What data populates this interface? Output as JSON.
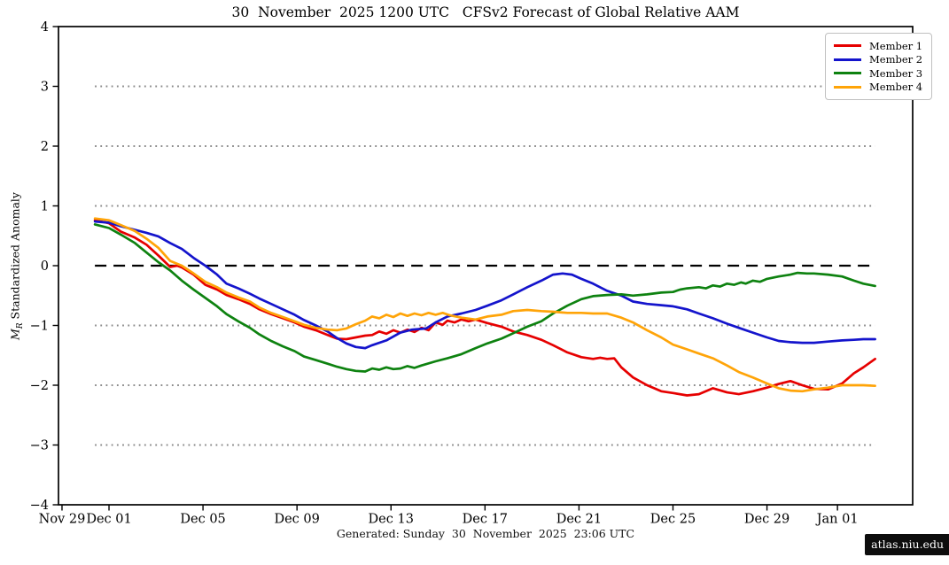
{
  "title": "30  November  2025 1200 UTC   CFSv2 Forecast of Global Relative AAM",
  "caption": "Generated: Sunday  30  November  2025  23:06 UTC",
  "watermark": "atlas.niu.edu",
  "ylabel": {
    "m": "M",
    "sub": "R",
    "rest": " Standardized Anomaly"
  },
  "chart_data": {
    "type": "line",
    "title": "30  November  2025 1200 UTC   CFSv2 Forecast of Global Relative AAM",
    "xlabel": "",
    "ylabel": "M_R Standardized Anomaly",
    "ylim": [
      -4,
      4
    ],
    "yticks": [
      -4,
      -3,
      -2,
      -1,
      0,
      1,
      2,
      3,
      4
    ],
    "xlim_days": [
      -0.15,
      36.2
    ],
    "x_unit": "days after Nov 29",
    "xticks": [
      {
        "day": 0,
        "label": "Nov 29"
      },
      {
        "day": 2,
        "label": "Dec 01"
      },
      {
        "day": 6,
        "label": "Dec 05"
      },
      {
        "day": 10,
        "label": "Dec 09"
      },
      {
        "day": 14,
        "label": "Dec 13"
      },
      {
        "day": 18,
        "label": "Dec 17"
      },
      {
        "day": 22,
        "label": "Dec 21"
      },
      {
        "day": 26,
        "label": "Dec 25"
      },
      {
        "day": 30,
        "label": "Dec 29"
      },
      {
        "day": 33,
        "label": "Jan 01"
      }
    ],
    "grid": {
      "dotted_levels": [
        -3,
        -2,
        -1,
        1,
        2,
        3
      ],
      "dotted_color": "#8a8a8a",
      "zero_line_level": 0,
      "zero_line_color": "#000000",
      "span_days": [
        1.4,
        34.6
      ]
    },
    "legend_position": "upper right",
    "series": [
      {
        "name": "Member 1",
        "color": "#e60000",
        "points": [
          [
            1.4,
            0.76
          ],
          [
            2.0,
            0.71
          ],
          [
            2.5,
            0.57
          ],
          [
            3.1,
            0.47
          ],
          [
            3.6,
            0.35
          ],
          [
            4.1,
            0.17
          ],
          [
            4.6,
            -0.02
          ],
          [
            4.9,
            0.0
          ],
          [
            5.1,
            -0.03
          ],
          [
            5.6,
            -0.15
          ],
          [
            6.1,
            -0.32
          ],
          [
            6.6,
            -0.4
          ],
          [
            7.0,
            -0.49
          ],
          [
            7.5,
            -0.56
          ],
          [
            8.0,
            -0.64
          ],
          [
            8.4,
            -0.73
          ],
          [
            8.9,
            -0.81
          ],
          [
            9.4,
            -0.88
          ],
          [
            9.9,
            -0.95
          ],
          [
            10.3,
            -1.02
          ],
          [
            10.8,
            -1.08
          ],
          [
            11.3,
            -1.16
          ],
          [
            11.7,
            -1.22
          ],
          [
            12.1,
            -1.23
          ],
          [
            12.5,
            -1.2
          ],
          [
            12.9,
            -1.17
          ],
          [
            13.2,
            -1.16
          ],
          [
            13.5,
            -1.1
          ],
          [
            13.8,
            -1.14
          ],
          [
            14.1,
            -1.08
          ],
          [
            14.4,
            -1.12
          ],
          [
            14.7,
            -1.07
          ],
          [
            15.0,
            -1.11
          ],
          [
            15.3,
            -1.04
          ],
          [
            15.6,
            -1.08
          ],
          [
            15.9,
            -0.95
          ],
          [
            16.2,
            -0.99
          ],
          [
            16.4,
            -0.92
          ],
          [
            16.7,
            -0.95
          ],
          [
            17.0,
            -0.9
          ],
          [
            17.3,
            -0.93
          ],
          [
            17.6,
            -0.9
          ],
          [
            18.1,
            -0.96
          ],
          [
            18.7,
            -1.02
          ],
          [
            19.2,
            -1.1
          ],
          [
            19.8,
            -1.16
          ],
          [
            20.4,
            -1.24
          ],
          [
            20.9,
            -1.33
          ],
          [
            21.5,
            -1.45
          ],
          [
            22.1,
            -1.53
          ],
          [
            22.6,
            -1.56
          ],
          [
            22.9,
            -1.54
          ],
          [
            23.2,
            -1.56
          ],
          [
            23.5,
            -1.55
          ],
          [
            23.8,
            -1.7
          ],
          [
            24.3,
            -1.87
          ],
          [
            24.9,
            -2.0
          ],
          [
            25.5,
            -2.1
          ],
          [
            26.0,
            -2.13
          ],
          [
            26.6,
            -2.17
          ],
          [
            27.1,
            -2.15
          ],
          [
            27.7,
            -2.05
          ],
          [
            28.3,
            -2.12
          ],
          [
            28.8,
            -2.15
          ],
          [
            29.4,
            -2.1
          ],
          [
            30.0,
            -2.04
          ],
          [
            30.5,
            -1.98
          ],
          [
            31.0,
            -1.93
          ],
          [
            31.5,
            -2.0
          ],
          [
            32.0,
            -2.06
          ],
          [
            32.6,
            -2.07
          ],
          [
            33.2,
            -1.97
          ],
          [
            33.7,
            -1.8
          ],
          [
            34.1,
            -1.7
          ],
          [
            34.6,
            -1.56
          ]
        ]
      },
      {
        "name": "Member 2",
        "color": "#1414cc",
        "points": [
          [
            1.4,
            0.74
          ],
          [
            2.0,
            0.72
          ],
          [
            2.5,
            0.66
          ],
          [
            3.1,
            0.6
          ],
          [
            3.6,
            0.55
          ],
          [
            4.1,
            0.49
          ],
          [
            4.6,
            0.38
          ],
          [
            5.1,
            0.28
          ],
          [
            5.6,
            0.13
          ],
          [
            6.1,
            0.0
          ],
          [
            6.6,
            -0.15
          ],
          [
            7.0,
            -0.3
          ],
          [
            7.5,
            -0.38
          ],
          [
            8.0,
            -0.47
          ],
          [
            8.4,
            -0.55
          ],
          [
            8.9,
            -0.64
          ],
          [
            9.4,
            -0.73
          ],
          [
            9.9,
            -0.82
          ],
          [
            10.3,
            -0.91
          ],
          [
            10.8,
            -1.0
          ],
          [
            11.3,
            -1.1
          ],
          [
            11.7,
            -1.21
          ],
          [
            12.1,
            -1.3
          ],
          [
            12.5,
            -1.36
          ],
          [
            12.9,
            -1.38
          ],
          [
            13.2,
            -1.33
          ],
          [
            13.8,
            -1.25
          ],
          [
            14.4,
            -1.12
          ],
          [
            14.9,
            -1.07
          ],
          [
            15.5,
            -1.05
          ],
          [
            15.9,
            -0.95
          ],
          [
            16.4,
            -0.85
          ],
          [
            17.0,
            -0.8
          ],
          [
            17.6,
            -0.74
          ],
          [
            18.1,
            -0.67
          ],
          [
            18.7,
            -0.58
          ],
          [
            19.2,
            -0.48
          ],
          [
            19.8,
            -0.36
          ],
          [
            20.4,
            -0.25
          ],
          [
            20.9,
            -0.15
          ],
          [
            21.3,
            -0.13
          ],
          [
            21.7,
            -0.15
          ],
          [
            22.1,
            -0.22
          ],
          [
            22.6,
            -0.3
          ],
          [
            23.2,
            -0.42
          ],
          [
            23.8,
            -0.5
          ],
          [
            24.3,
            -0.6
          ],
          [
            24.9,
            -0.64
          ],
          [
            25.5,
            -0.66
          ],
          [
            26.0,
            -0.68
          ],
          [
            26.6,
            -0.73
          ],
          [
            27.1,
            -0.8
          ],
          [
            27.7,
            -0.88
          ],
          [
            28.3,
            -0.97
          ],
          [
            28.8,
            -1.04
          ],
          [
            29.4,
            -1.12
          ],
          [
            30.0,
            -1.2
          ],
          [
            30.5,
            -1.26
          ],
          [
            31.0,
            -1.28
          ],
          [
            31.5,
            -1.29
          ],
          [
            32.0,
            -1.29
          ],
          [
            32.6,
            -1.27
          ],
          [
            33.2,
            -1.25
          ],
          [
            33.7,
            -1.24
          ],
          [
            34.1,
            -1.23
          ],
          [
            34.6,
            -1.23
          ]
        ]
      },
      {
        "name": "Member 3",
        "color": "#0e8210",
        "points": [
          [
            1.4,
            0.69
          ],
          [
            2.0,
            0.63
          ],
          [
            2.5,
            0.52
          ],
          [
            3.1,
            0.38
          ],
          [
            3.6,
            0.22
          ],
          [
            4.1,
            0.06
          ],
          [
            4.6,
            -0.08
          ],
          [
            5.1,
            -0.25
          ],
          [
            5.6,
            -0.4
          ],
          [
            6.1,
            -0.54
          ],
          [
            6.6,
            -0.68
          ],
          [
            7.0,
            -0.81
          ],
          [
            7.5,
            -0.93
          ],
          [
            8.0,
            -1.04
          ],
          [
            8.4,
            -1.15
          ],
          [
            8.9,
            -1.26
          ],
          [
            9.4,
            -1.35
          ],
          [
            9.9,
            -1.43
          ],
          [
            10.3,
            -1.52
          ],
          [
            10.8,
            -1.58
          ],
          [
            11.3,
            -1.64
          ],
          [
            11.7,
            -1.69
          ],
          [
            12.1,
            -1.73
          ],
          [
            12.5,
            -1.76
          ],
          [
            12.9,
            -1.77
          ],
          [
            13.2,
            -1.72
          ],
          [
            13.5,
            -1.74
          ],
          [
            13.8,
            -1.7
          ],
          [
            14.1,
            -1.73
          ],
          [
            14.4,
            -1.72
          ],
          [
            14.7,
            -1.68
          ],
          [
            15.0,
            -1.71
          ],
          [
            15.3,
            -1.67
          ],
          [
            15.9,
            -1.6
          ],
          [
            16.4,
            -1.55
          ],
          [
            17.0,
            -1.48
          ],
          [
            17.6,
            -1.38
          ],
          [
            18.1,
            -1.3
          ],
          [
            18.7,
            -1.22
          ],
          [
            19.2,
            -1.13
          ],
          [
            19.8,
            -1.02
          ],
          [
            20.4,
            -0.93
          ],
          [
            20.9,
            -0.8
          ],
          [
            21.5,
            -0.67
          ],
          [
            22.1,
            -0.56
          ],
          [
            22.6,
            -0.51
          ],
          [
            23.2,
            -0.49
          ],
          [
            23.8,
            -0.48
          ],
          [
            24.3,
            -0.5
          ],
          [
            24.9,
            -0.48
          ],
          [
            25.5,
            -0.45
          ],
          [
            26.0,
            -0.44
          ],
          [
            26.3,
            -0.4
          ],
          [
            26.6,
            -0.38
          ],
          [
            27.1,
            -0.36
          ],
          [
            27.4,
            -0.38
          ],
          [
            27.7,
            -0.33
          ],
          [
            28.0,
            -0.35
          ],
          [
            28.3,
            -0.3
          ],
          [
            28.6,
            -0.32
          ],
          [
            28.9,
            -0.28
          ],
          [
            29.1,
            -0.3
          ],
          [
            29.4,
            -0.25
          ],
          [
            29.7,
            -0.27
          ],
          [
            30.0,
            -0.22
          ],
          [
            30.5,
            -0.18
          ],
          [
            31.0,
            -0.15
          ],
          [
            31.3,
            -0.12
          ],
          [
            31.7,
            -0.13
          ],
          [
            32.0,
            -0.13
          ],
          [
            32.6,
            -0.15
          ],
          [
            33.2,
            -0.18
          ],
          [
            33.7,
            -0.25
          ],
          [
            34.1,
            -0.3
          ],
          [
            34.6,
            -0.34
          ]
        ]
      },
      {
        "name": "Member 4",
        "color": "#ffa408",
        "points": [
          [
            1.4,
            0.79
          ],
          [
            2.0,
            0.76
          ],
          [
            2.5,
            0.68
          ],
          [
            3.1,
            0.58
          ],
          [
            3.6,
            0.45
          ],
          [
            4.1,
            0.3
          ],
          [
            4.6,
            0.08
          ],
          [
            5.1,
            0.0
          ],
          [
            5.6,
            -0.13
          ],
          [
            6.1,
            -0.27
          ],
          [
            6.6,
            -0.36
          ],
          [
            7.0,
            -0.45
          ],
          [
            7.5,
            -0.53
          ],
          [
            8.0,
            -0.6
          ],
          [
            8.4,
            -0.7
          ],
          [
            8.9,
            -0.79
          ],
          [
            9.4,
            -0.86
          ],
          [
            9.9,
            -0.93
          ],
          [
            10.3,
            -0.99
          ],
          [
            10.8,
            -1.04
          ],
          [
            11.3,
            -1.07
          ],
          [
            11.7,
            -1.08
          ],
          [
            12.1,
            -1.05
          ],
          [
            12.5,
            -0.98
          ],
          [
            12.9,
            -0.92
          ],
          [
            13.2,
            -0.85
          ],
          [
            13.5,
            -0.88
          ],
          [
            13.8,
            -0.82
          ],
          [
            14.1,
            -0.86
          ],
          [
            14.4,
            -0.8
          ],
          [
            14.7,
            -0.84
          ],
          [
            15.0,
            -0.8
          ],
          [
            15.3,
            -0.83
          ],
          [
            15.6,
            -0.79
          ],
          [
            15.9,
            -0.82
          ],
          [
            16.2,
            -0.79
          ],
          [
            16.5,
            -0.83
          ],
          [
            17.0,
            -0.87
          ],
          [
            17.6,
            -0.9
          ],
          [
            18.1,
            -0.85
          ],
          [
            18.7,
            -0.82
          ],
          [
            19.2,
            -0.76
          ],
          [
            19.8,
            -0.74
          ],
          [
            20.4,
            -0.76
          ],
          [
            20.9,
            -0.77
          ],
          [
            21.5,
            -0.79
          ],
          [
            22.1,
            -0.79
          ],
          [
            22.6,
            -0.8
          ],
          [
            23.2,
            -0.8
          ],
          [
            23.8,
            -0.87
          ],
          [
            24.3,
            -0.95
          ],
          [
            24.9,
            -1.08
          ],
          [
            25.5,
            -1.2
          ],
          [
            26.0,
            -1.32
          ],
          [
            26.6,
            -1.4
          ],
          [
            27.1,
            -1.47
          ],
          [
            27.7,
            -1.55
          ],
          [
            28.3,
            -1.67
          ],
          [
            28.8,
            -1.78
          ],
          [
            29.4,
            -1.87
          ],
          [
            30.0,
            -1.97
          ],
          [
            30.5,
            -2.05
          ],
          [
            31.0,
            -2.09
          ],
          [
            31.5,
            -2.1
          ],
          [
            32.0,
            -2.07
          ],
          [
            32.6,
            -2.04
          ],
          [
            33.2,
            -2.0
          ],
          [
            33.7,
            -2.0
          ],
          [
            34.1,
            -2.0
          ],
          [
            34.6,
            -2.01
          ]
        ]
      }
    ]
  }
}
